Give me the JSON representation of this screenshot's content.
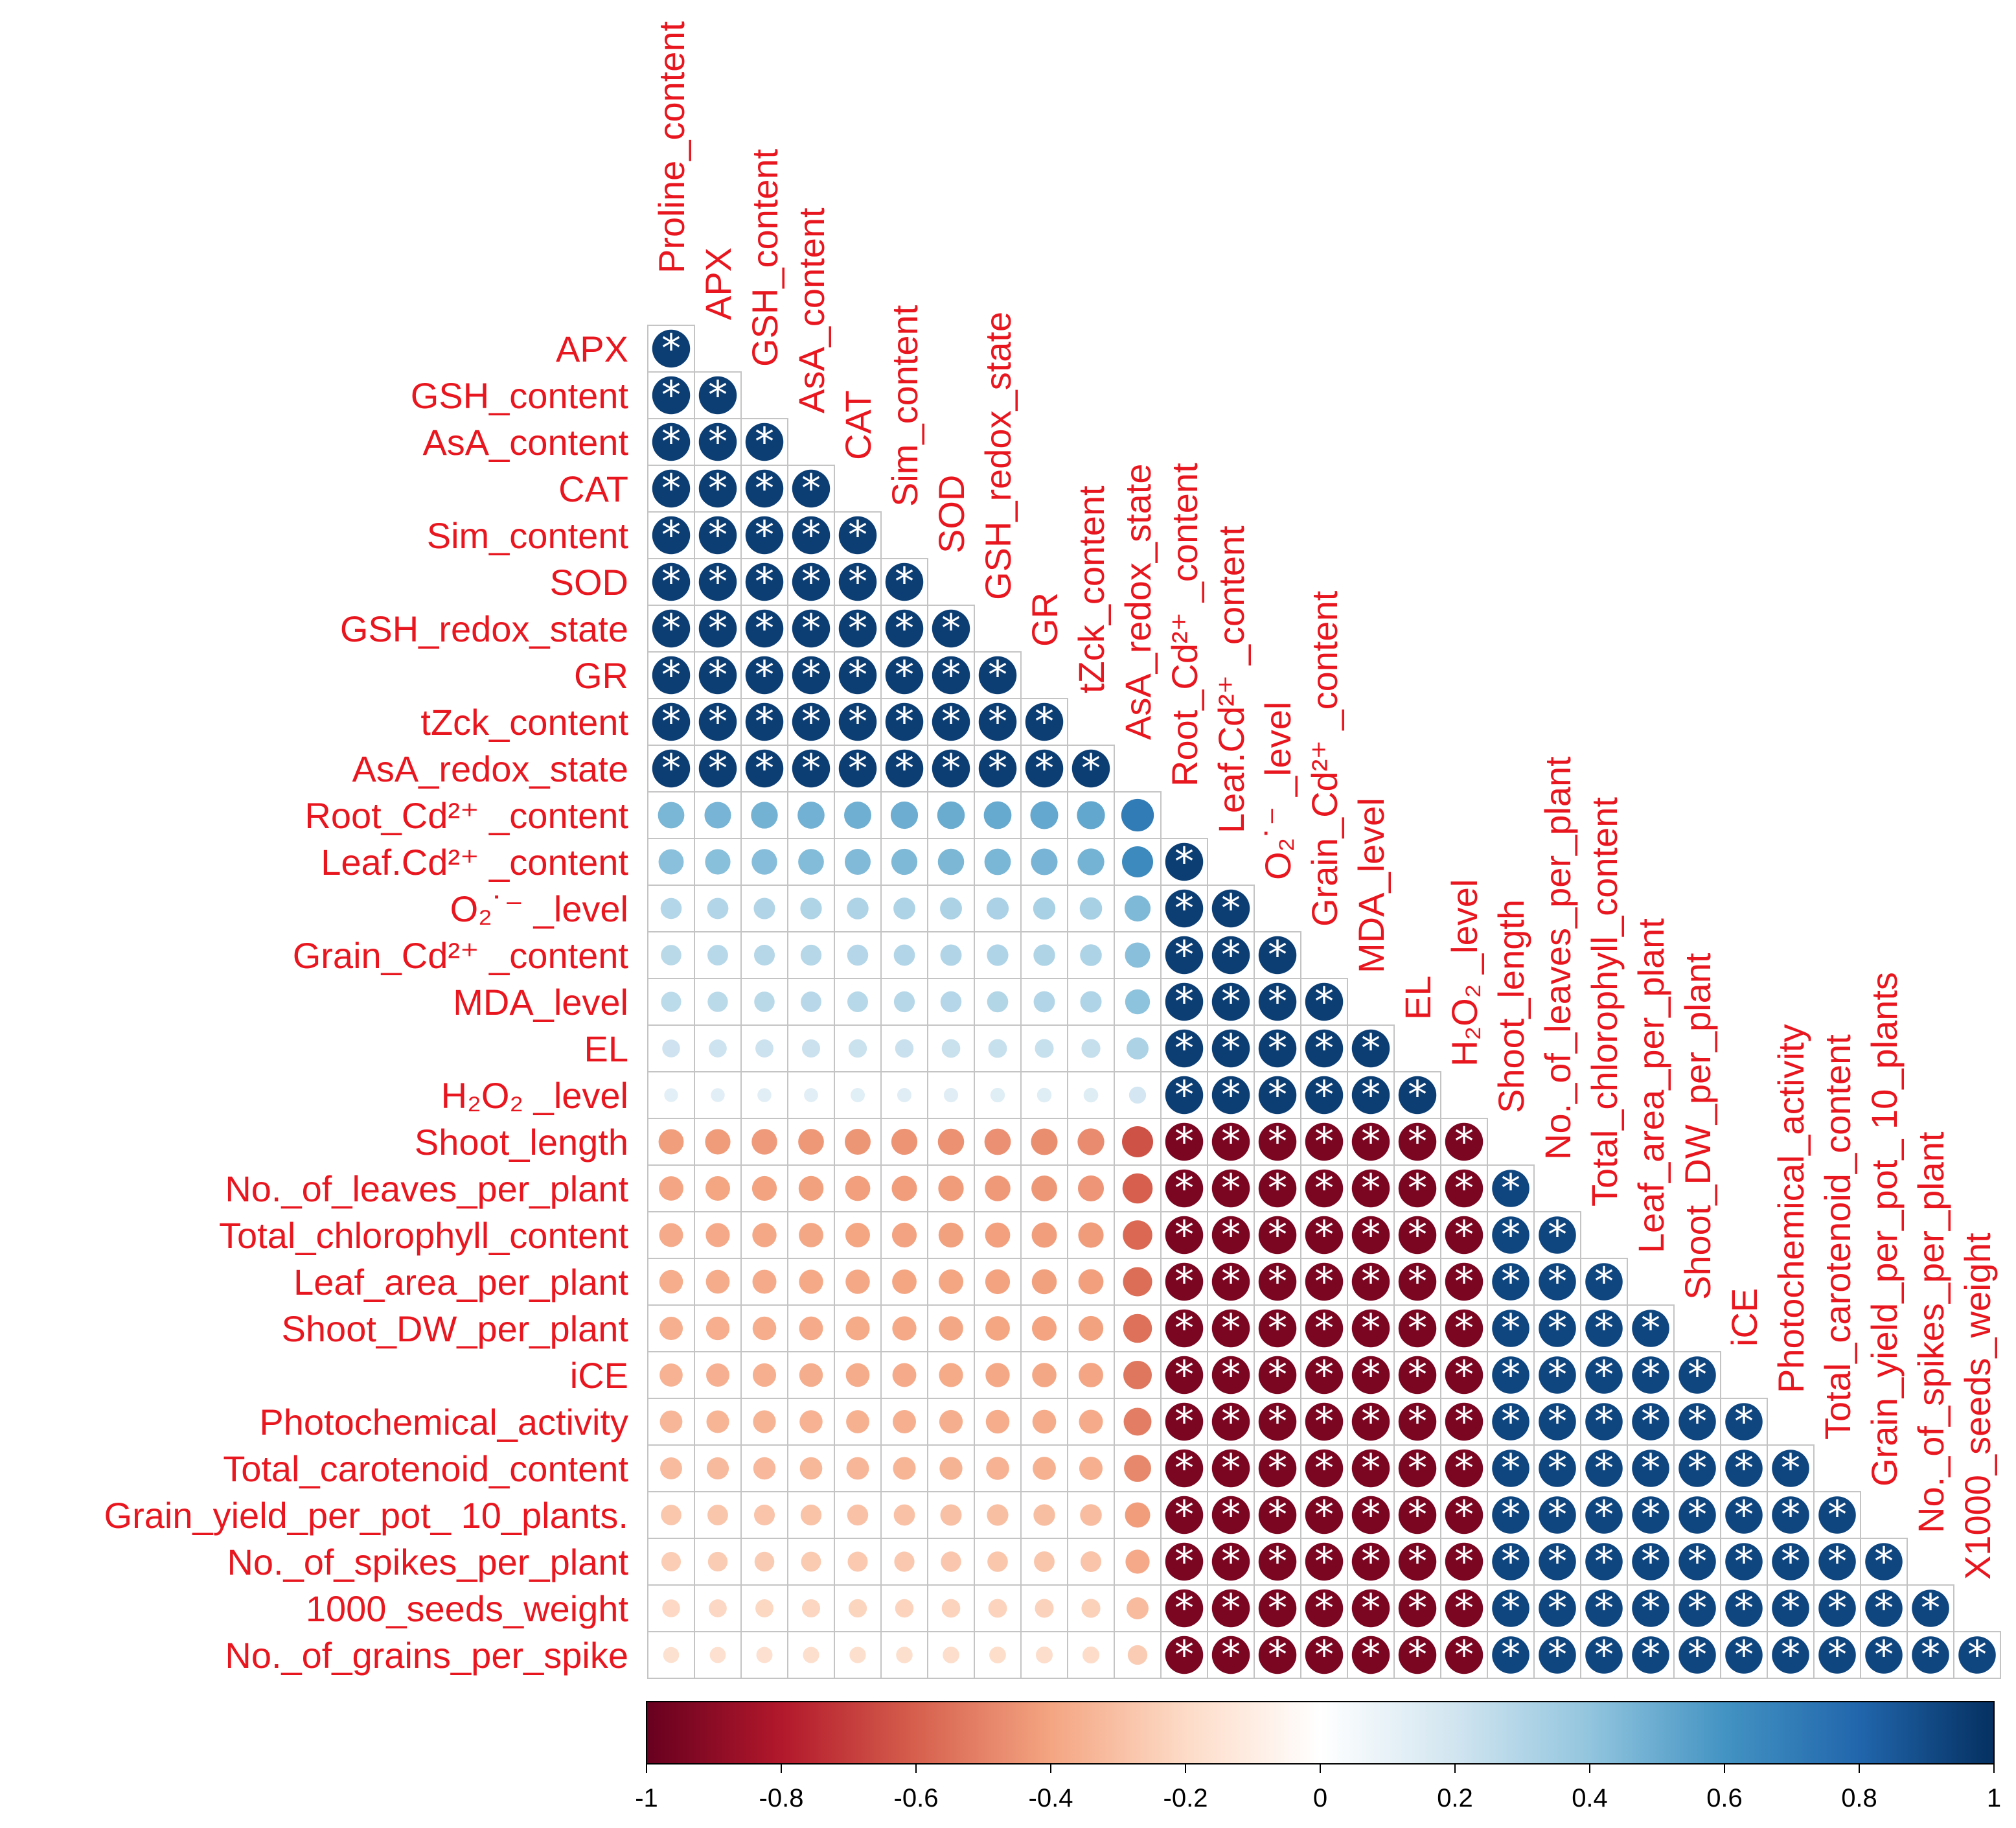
{
  "chart_data": {
    "type": "heatmap",
    "style": "correlation-circle-lower-triangle",
    "variables": [
      "Proline_content",
      "APX",
      "GSH_content",
      "AsA_content",
      "CAT",
      "Sim_content",
      "SOD",
      "GSH_redox_state",
      "GR",
      "tZck_content",
      "AsA_redox_state",
      "Root_Cd²⁺_content",
      "Leaf.Cd²⁺_content",
      "O₂˙⁻_level",
      "Grain_Cd²⁺_content",
      "MDA_level",
      "EL",
      "H₂O₂_level",
      "Shoot_length",
      "No._of_leaves_per_plant",
      "Total_chlorophyll_content",
      "Leaf_area_per_plant",
      "Shoot_DW_per_plant",
      "iCE",
      "Photochemical_activity",
      "Total_carotenoid_content",
      "Grain_yield_per_pot_ 10_plants.",
      "No._of_spikes_per_plant",
      "1000_seeds_weight",
      "No._of_grains_per_spike"
    ],
    "row_labels": [
      "APX",
      "GSH_content",
      "AsA_content",
      "CAT",
      "Sim_content",
      "SOD",
      "GSH_redox_state",
      "GR",
      "tZck_content",
      "AsA_redox_state",
      "Root_Cd²⁺ _content",
      "Leaf.Cd²⁺ _content",
      "O₂˙⁻ _level",
      "Grain_Cd²⁺ _content",
      "MDA_level",
      "EL",
      "H₂O₂ _level",
      "Shoot_length",
      "No._of_leaves_per_plant",
      "Total_chlorophyll_content",
      "Leaf_area_per_plant",
      "Shoot_DW_per_plant",
      "iCE",
      "Photochemical_activity",
      "Total_carotenoid_content",
      "Grain_yield_per_pot_ 10_plants.",
      "No._of_spikes_per_plant",
      "1000_seeds_weight",
      "No._of_grains_per_spike"
    ],
    "column_labels": [
      "Proline_content",
      "APX",
      "GSH_content",
      "AsA_content",
      "CAT",
      "Sim_content",
      "SOD",
      "GSH_redox_state",
      "GR",
      "tZck_content",
      "AsA_redox_state",
      "Root_Cd²⁺ _content",
      "Leaf.Cd²⁺ _content",
      "O₂˙⁻ _level",
      "Grain_Cd²⁺ _content",
      "MDA_level",
      "EL",
      "H₂O₂ _level",
      "Shoot_length",
      "No._of_leaves_per_plant",
      "Total_chlorophyll_content",
      "Leaf_area_per_plant",
      "Shoot_DW_per_plant",
      "iCE",
      "Photochemical_activity",
      "Total_carotenoid_content",
      "Grain_yield_per_pot_ 10_plants",
      "No._of_spikes_per_plant",
      "X1000_seeds_weight"
    ],
    "group_values": {
      "antioxidant_vs_antioxidant": 0.95,
      "cd_stress_vs_cd_stress": 0.95,
      "growth_vs_growth": 0.92,
      "cd_stress_vs_growth": -0.95,
      "antioxidant_vs_cd_stress_rows": [
        0.55,
        0.5,
        0.35,
        0.33,
        0.32,
        0.25,
        0.15
      ],
      "antioxidant_vs_growth_rows": [
        -0.5,
        -0.47,
        -0.45,
        -0.44,
        -0.43,
        -0.42,
        -0.4,
        -0.38,
        -0.33,
        -0.3,
        -0.25,
        -0.2
      ]
    },
    "significance_marker": "*",
    "significance_rule": "|r| >= 0.85",
    "colorbar": {
      "min": -1,
      "max": 1,
      "ticks": [
        -1,
        -0.8,
        -0.6,
        -0.4,
        -0.2,
        0,
        0.2,
        0.4,
        0.6,
        0.8,
        1
      ],
      "tick_labels": [
        "-1",
        "-0.8",
        "-0.6",
        "-0.4",
        "-0.2",
        "0",
        "0.2",
        "0.4",
        "0.6",
        "0.8",
        "1"
      ]
    },
    "colors": {
      "negative_strong": "#67001f",
      "negative_mid": "#d6604d",
      "neutral": "#ffffff",
      "positive_mid": "#4393c3",
      "positive_strong": "#053061",
      "label_color": "#e8171f",
      "grid_color": "#c4c4c4"
    }
  }
}
